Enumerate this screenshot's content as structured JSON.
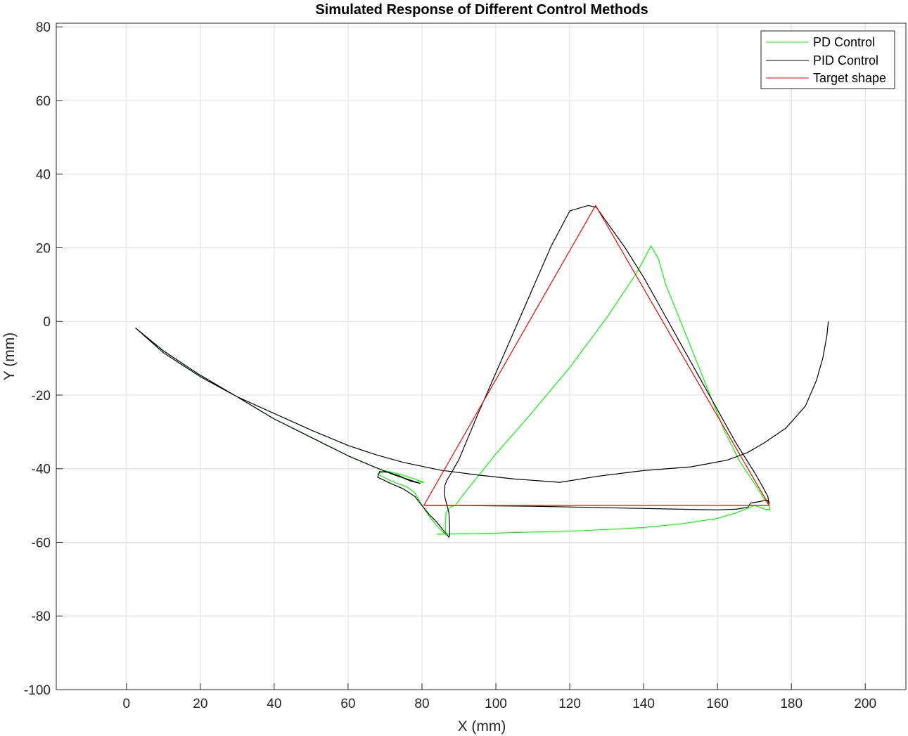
{
  "chart_data": {
    "type": "line",
    "title": "Simulated Response of Different Control Methods",
    "xlabel": "X (mm)",
    "ylabel": "Y (mm)",
    "xlim": [
      -19,
      211
    ],
    "ylim": [
      -100,
      81
    ],
    "xticks": [
      0,
      20,
      40,
      60,
      80,
      100,
      120,
      140,
      160,
      180,
      200
    ],
    "yticks": [
      -100,
      -80,
      -60,
      -40,
      -20,
      0,
      20,
      40,
      60,
      80
    ],
    "grid": true,
    "legend_position": "top-right",
    "series": [
      {
        "name": "PD Control",
        "color": "#00ff00",
        "x": [
          2.5,
          10,
          19.5,
          30,
          40,
          50,
          60,
          67,
          72,
          76,
          78,
          80.5,
          78,
          74,
          70,
          68,
          72,
          76,
          78,
          80,
          82,
          84,
          86,
          86.5,
          86.3,
          86.5,
          87.5,
          89,
          92,
          100,
          110,
          120,
          130,
          138,
          142,
          144,
          146,
          150,
          154,
          158,
          162,
          166,
          170,
          172.5,
          174,
          174.2,
          173,
          170,
          165,
          160,
          150,
          140,
          130,
          120,
          110,
          100,
          90,
          84
        ],
        "y": [
          -1.8,
          -8,
          -14.3,
          -20.5,
          -26.5,
          -31.5,
          -36.5,
          -39.5,
          -41.5,
          -43,
          -43.6,
          -43.7,
          -42.8,
          -41.5,
          -40.5,
          -41.5,
          -43.5,
          -45,
          -46.5,
          -50,
          -53,
          -55.5,
          -57.5,
          -58,
          -55.5,
          -52,
          -50.5,
          -50,
          -46,
          -36,
          -24.5,
          -12.5,
          1,
          13,
          20.5,
          17,
          10,
          0,
          -10,
          -20,
          -30,
          -38,
          -44,
          -48,
          -50,
          -51.2,
          -51,
          -50,
          -52,
          -53.5,
          -55,
          -56,
          -56.5,
          -57,
          -57.2,
          -57.5,
          -57.7,
          -57.8
        ]
      },
      {
        "name": "PID Control",
        "color": "#000000",
        "x": [
          190,
          189.6,
          188.5,
          186.8,
          183.8,
          178.5,
          172.6,
          168,
          162.5,
          152.8,
          140,
          128,
          117.3,
          105,
          95,
          85,
          75,
          67.5,
          60,
          50,
          40,
          30,
          20,
          10,
          2.5,
          10,
          19.5,
          30,
          40,
          50,
          60,
          67,
          72,
          76,
          79.5,
          77,
          74,
          71,
          68.5,
          68,
          71.5,
          75,
          78,
          80,
          82,
          84,
          86,
          87.3,
          87.5,
          87.5,
          87.3,
          86,
          86.2,
          86.8,
          88.3,
          90,
          95,
          100,
          105,
          110,
          115,
          120,
          125,
          127.2,
          130,
          135,
          140,
          145,
          150,
          155,
          160,
          165,
          170,
          172,
          173.6,
          174,
          173.5,
          171,
          169,
          168.2,
          165,
          160,
          150,
          140,
          130,
          120,
          110,
          100,
          90,
          86,
          83,
          81
        ],
        "y": [
          0,
          -4,
          -10,
          -16,
          -23,
          -29,
          -33,
          -35.7,
          -37.7,
          -39.5,
          -40.5,
          -42,
          -43.7,
          -42.8,
          -41.7,
          -40.4,
          -38.3,
          -36.2,
          -33.7,
          -29.5,
          -25,
          -20.5,
          -15,
          -8.5,
          -1.8,
          -8,
          -14.3,
          -20.5,
          -26.5,
          -31.5,
          -36.5,
          -39.5,
          -41.5,
          -42.8,
          -44,
          -43.4,
          -42,
          -41,
          -40.8,
          -42.3,
          -44,
          -45.5,
          -47.5,
          -50,
          -52.5,
          -54.5,
          -57,
          -58.6,
          -58,
          -56,
          -52,
          -47,
          -44.5,
          -43,
          -40.5,
          -37.5,
          -25.5,
          -14,
          -2.5,
          9,
          20.5,
          30,
          31.5,
          31,
          27,
          20,
          12,
          3,
          -6,
          -15,
          -24,
          -33,
          -41,
          -44.5,
          -47.5,
          -49.5,
          -48.5,
          -49,
          -49.3,
          -50.5,
          -51,
          -51.2,
          -51,
          -50.8,
          -50.6,
          -50.4,
          -50.2,
          -50.1,
          -50,
          -50,
          -50,
          -50
        ]
      },
      {
        "name": "Target shape",
        "color": "#ff0000",
        "x": [
          80.5,
          127,
          174,
          80.5
        ],
        "y": [
          -50,
          31.5,
          -50,
          -50
        ]
      }
    ]
  }
}
